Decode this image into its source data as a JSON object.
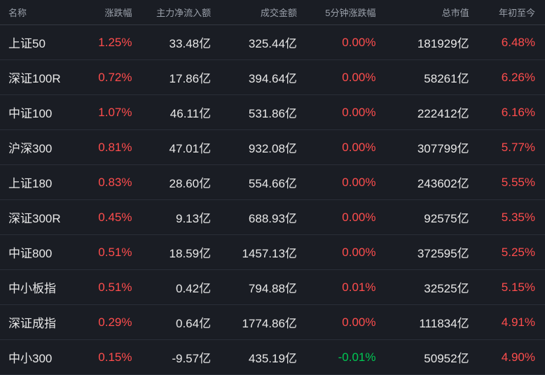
{
  "headers": {
    "name": "名称",
    "change": "涨跌幅",
    "inflow": "主力净流入额",
    "turnover": "成交金额",
    "fivemin": "5分钟涨跌幅",
    "mcap": "总市值",
    "ytd": "年初至今"
  },
  "colors": {
    "background": "#1a1d24",
    "header_text": "#9aa0aa",
    "text": "#e8e8e8",
    "positive": "#ff4d4d",
    "negative": "#00c853",
    "row_border": "#2a2e38"
  },
  "rows": [
    {
      "name": "上证50",
      "change": "1.25%",
      "change_dir": "pos",
      "inflow": "33.48亿",
      "turnover": "325.44亿",
      "fivemin": "0.00%",
      "fivemin_dir": "pos",
      "mcap": "181929亿",
      "ytd": "6.48%",
      "ytd_dir": "pos"
    },
    {
      "name": "深证100R",
      "change": "0.72%",
      "change_dir": "pos",
      "inflow": "17.86亿",
      "turnover": "394.64亿",
      "fivemin": "0.00%",
      "fivemin_dir": "pos",
      "mcap": "58261亿",
      "ytd": "6.26%",
      "ytd_dir": "pos"
    },
    {
      "name": "中证100",
      "change": "1.07%",
      "change_dir": "pos",
      "inflow": "46.11亿",
      "turnover": "531.86亿",
      "fivemin": "0.00%",
      "fivemin_dir": "pos",
      "mcap": "222412亿",
      "ytd": "6.16%",
      "ytd_dir": "pos"
    },
    {
      "name": "沪深300",
      "change": "0.81%",
      "change_dir": "pos",
      "inflow": "47.01亿",
      "turnover": "932.08亿",
      "fivemin": "0.00%",
      "fivemin_dir": "pos",
      "mcap": "307799亿",
      "ytd": "5.77%",
      "ytd_dir": "pos"
    },
    {
      "name": "上证180",
      "change": "0.83%",
      "change_dir": "pos",
      "inflow": "28.60亿",
      "turnover": "554.66亿",
      "fivemin": "0.00%",
      "fivemin_dir": "pos",
      "mcap": "243602亿",
      "ytd": "5.55%",
      "ytd_dir": "pos"
    },
    {
      "name": "深证300R",
      "change": "0.45%",
      "change_dir": "pos",
      "inflow": "9.13亿",
      "turnover": "688.93亿",
      "fivemin": "0.00%",
      "fivemin_dir": "pos",
      "mcap": "92575亿",
      "ytd": "5.35%",
      "ytd_dir": "pos"
    },
    {
      "name": "中证800",
      "change": "0.51%",
      "change_dir": "pos",
      "inflow": "18.59亿",
      "turnover": "1457.13亿",
      "fivemin": "0.00%",
      "fivemin_dir": "pos",
      "mcap": "372595亿",
      "ytd": "5.25%",
      "ytd_dir": "pos"
    },
    {
      "name": "中小板指",
      "change": "0.51%",
      "change_dir": "pos",
      "inflow": "0.42亿",
      "turnover": "794.88亿",
      "fivemin": "0.01%",
      "fivemin_dir": "pos",
      "mcap": "32525亿",
      "ytd": "5.15%",
      "ytd_dir": "pos"
    },
    {
      "name": "深证成指",
      "change": "0.29%",
      "change_dir": "pos",
      "inflow": "0.64亿",
      "turnover": "1774.86亿",
      "fivemin": "0.00%",
      "fivemin_dir": "pos",
      "mcap": "111834亿",
      "ytd": "4.91%",
      "ytd_dir": "pos"
    },
    {
      "name": "中小300",
      "change": "0.15%",
      "change_dir": "pos",
      "inflow": "-9.57亿",
      "turnover": "435.19亿",
      "fivemin": "-0.01%",
      "fivemin_dir": "neg",
      "mcap": "50952亿",
      "ytd": "4.90%",
      "ytd_dir": "pos"
    }
  ]
}
